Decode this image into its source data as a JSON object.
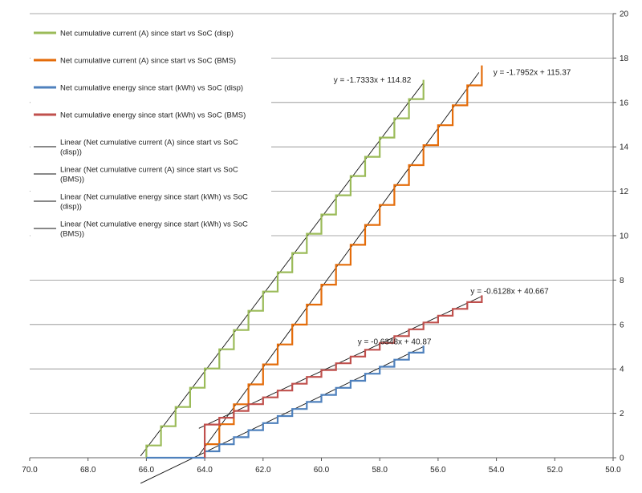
{
  "chart_data": {
    "type": "line",
    "x_axis": {
      "range": [
        70,
        50
      ],
      "reversed": true,
      "ticks": [
        70,
        68,
        66,
        64,
        62,
        60,
        58,
        56,
        54,
        52,
        50
      ],
      "tick_labels": [
        "70.0",
        "68.0",
        "66.0",
        "64.0",
        "62.0",
        "60.0",
        "58.0",
        "56.0",
        "54.0",
        "52.0",
        "50.0"
      ]
    },
    "y_axis": {
      "range": [
        0,
        20
      ],
      "position": "right",
      "ticks": [
        0,
        2,
        4,
        6,
        8,
        10,
        12,
        14,
        16,
        18,
        20
      ],
      "tick_labels": [
        "0",
        "2",
        "4",
        "6",
        "8",
        "10",
        "12",
        "14",
        "16",
        "18",
        "20"
      ]
    },
    "grid": "horizontal",
    "legend_position": "top-left",
    "series": [
      {
        "name": "Net cumulative current (A) since start vs SoC (disp)",
        "color": "#9BBB59",
        "style": "step",
        "x_range": [
          66.0,
          56.5
        ],
        "step_width": 0.5,
        "slope": -1.7333,
        "intercept": 114.82
      },
      {
        "name": "Net cumulative current (A) since start vs SoC (BMS)",
        "color": "#E46C0A",
        "style": "step",
        "x_range": [
          64.0,
          54.5
        ],
        "step_width": 0.5,
        "slope": -1.7952,
        "intercept": 115.37
      },
      {
        "name": "Net cumulative energy since start (kWh) vs SoC (disp)",
        "color": "#4F81BD",
        "style": "step",
        "x_range": [
          66.0,
          56.5
        ],
        "step_width": 0.5,
        "slope": -0.6348,
        "intercept": 40.87
      },
      {
        "name": "Net cumulative energy since start (kWh) vs SoC (BMS)",
        "color": "#C0504D",
        "style": "step",
        "x_range": [
          64.0,
          54.5
        ],
        "step_width": 0.5,
        "slope": -0.6128,
        "intercept": 40.667
      }
    ],
    "trendlines": [
      {
        "name": "Linear (Net cumulative current (A) since start vs SoC (disp))",
        "slope": -1.7333,
        "intercept": 114.82,
        "x_range": [
          66.2,
          56.5
        ],
        "equation": "y = -1.7333x + 114.82",
        "color": "#111111"
      },
      {
        "name": "Linear (Net cumulative current (A) since start vs SoC (BMS))",
        "slope": -1.7952,
        "intercept": 115.37,
        "x_range": [
          64.2,
          54.6
        ],
        "equation": "y = -1.7952x + 115.37",
        "color": "#111111"
      },
      {
        "name": "Linear (Net cumulative energy since start (kWh) vs SoC (disp))",
        "slope": -0.6348,
        "intercept": 40.87,
        "x_range": [
          66.2,
          56.5
        ],
        "equation": "y = -0.6348x + 40.87",
        "color": "#111111"
      },
      {
        "name": "Linear (Net cumulative energy since start (kWh) vs SoC (BMS))",
        "slope": -0.6128,
        "intercept": 40.667,
        "x_range": [
          64.2,
          54.5
        ],
        "equation": "y = -0.6128x + 40.667",
        "color": "#111111"
      }
    ],
    "legend": [
      {
        "label": "Net cumulative current (A) since start vs SoC (disp)",
        "color": "#9BBB59",
        "kind": "series"
      },
      {
        "label": "Net cumulative current (A) since start vs SoC (BMS)",
        "color": "#E46C0A",
        "kind": "series"
      },
      {
        "label": "Net cumulative energy since start (kWh) vs SoC (disp)",
        "color": "#4F81BD",
        "kind": "series"
      },
      {
        "label": "Net cumulative energy since start (kWh) vs SoC (BMS)",
        "color": "#C0504D",
        "kind": "series"
      },
      {
        "label": "Linear (Net cumulative current (A) since start vs SoC (disp))",
        "color": "#111111",
        "kind": "trend"
      },
      {
        "label": "Linear (Net cumulative current (A) since start vs SoC (BMS))",
        "color": "#111111",
        "kind": "trend"
      },
      {
        "label": "Linear (Net cumulative energy since start (kWh) vs SoC (disp))",
        "color": "#111111",
        "kind": "trend"
      },
      {
        "label": "Linear (Net cumulative energy since start (kWh) vs SoC (BMS))",
        "color": "#111111",
        "kind": "trend"
      }
    ]
  }
}
